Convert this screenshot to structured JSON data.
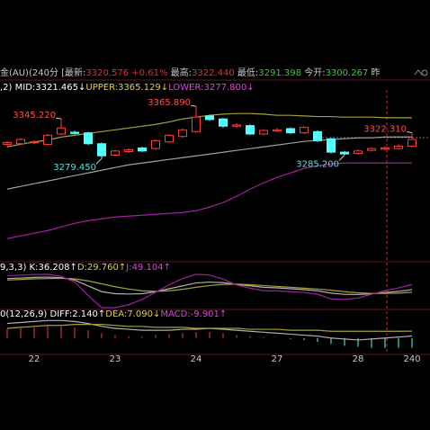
{
  "chart_data": {
    "type": "candlestick",
    "title_segments": [
      {
        "text": "金(AU)(240分",
        "color": "#c8c8c8"
      },
      {
        "text": " [最新:",
        "color": "#c8c8c8"
      },
      {
        "text": "3320.576 +0.61%",
        "color": "#e03030"
      },
      {
        "text": " 最高:",
        "color": "#c8c8c8"
      },
      {
        "text": "3322.440",
        "color": "#e03030"
      },
      {
        "text": " 最低:",
        "color": "#c8c8c8"
      },
      {
        "text": "3291.398",
        "color": "#30d030"
      },
      {
        "text": " 今开:",
        "color": "#c8c8c8"
      },
      {
        "text": "3300.267",
        "color": "#30d030"
      },
      {
        "text": " 昨",
        "color": "#c8c8c8"
      }
    ],
    "boll_segments": [
      {
        "text": ",2) MID:3321.465↓",
        "color": "#ffffff"
      },
      {
        "text": "UPPER:3365.129↓",
        "color": "#e0d040"
      },
      {
        "text": "LOWER:3277.800↓",
        "color": "#e040e0"
      }
    ],
    "categories": [
      null,
      null,
      "22",
      null,
      null,
      null,
      null,
      null,
      "23",
      null,
      null,
      null,
      null,
      null,
      "24",
      null,
      null,
      null,
      null,
      null,
      "27",
      null,
      null,
      null,
      null,
      null,
      "28",
      null,
      null,
      null,
      "240"
    ],
    "open": [
      3303,
      3304,
      3306,
      3303,
      3320,
      3323,
      3322,
      3304,
      3285,
      3291,
      3297,
      3296,
      3307,
      3316,
      3324,
      3350,
      3345,
      3333,
      3334,
      3320,
      3325,
      3329,
      3322,
      3324,
      3312,
      3290,
      3288,
      3293,
      3295,
      3296,
      3300
    ],
    "high": [
      3308,
      3313,
      3310,
      3320,
      3345.22,
      3326,
      3324,
      3306,
      3294,
      3296,
      3299,
      3311,
      3320,
      3329,
      3365.89,
      3352,
      3347,
      3338,
      3336,
      3328,
      3330,
      3331,
      3333,
      3326,
      3314,
      3292,
      3295,
      3298,
      3300,
      3303,
      3322.31
    ],
    "low": [
      3300,
      3302,
      3303,
      3301,
      3318,
      3319,
      3302,
      3279.45,
      3283,
      3289,
      3290,
      3294,
      3305,
      3314,
      3322,
      3342,
      3330,
      3330,
      3318,
      3318,
      3323,
      3320,
      3320,
      3307,
      3288,
      3285.2,
      3286,
      3291,
      3293,
      3294,
      3298
    ],
    "close": [
      3306,
      3311,
      3307,
      3318,
      3330,
      3321,
      3304,
      3284,
      3292,
      3294,
      3292,
      3309,
      3318,
      3327,
      3348,
      3344,
      3333,
      3335,
      3320,
      3326,
      3327,
      3322,
      3331,
      3309,
      3290,
      3287,
      3292,
      3296,
      3297,
      3300,
      3311
    ],
    "up_color": "#ff3c3c",
    "down_color": "#54ffff",
    "ylim": [
      3110,
      3393
    ],
    "series": [
      {
        "color": "#a8a030",
        "values": [
          3299,
          3303,
          3307,
          3310,
          3315,
          3318,
          3321,
          3324,
          3327,
          3330,
          3333,
          3336,
          3340,
          3345,
          3348,
          3351,
          3353,
          3354,
          3354,
          3353,
          3351,
          3351,
          3350,
          3349,
          3349,
          3348,
          3348,
          3348,
          3347,
          3347,
          3347
        ]
      },
      {
        "color": "#a0a0a0",
        "values": [
          3228.8,
          3233.3,
          3237.8,
          3242.2,
          3246.7,
          3251.2,
          3255.6,
          3260.1,
          3264.6,
          3269,
          3272,
          3275,
          3278,
          3280.9,
          3283.9,
          3286.9,
          3289.9,
          3292.9,
          3295.9,
          3298.8,
          3301.8,
          3304.8,
          3307.8,
          3309.3,
          3310.8,
          3312.3,
          3313.7,
          3313.7,
          3315.2,
          3315.2,
          3315.2
        ]
      },
      {
        "color": "#a020a0",
        "values": [
          3146.9,
          3151.3,
          3155.8,
          3160.3,
          3166.2,
          3172.2,
          3176.7,
          3179.6,
          3182.6,
          3184.1,
          3185.6,
          3187.1,
          3188.6,
          3190.1,
          3193.1,
          3199,
          3206.5,
          3216.9,
          3228.8,
          3239.2,
          3248.2,
          3255.6,
          3263.1,
          3267.6,
          3270.6,
          3272,
          3272,
          3272,
          3272,
          3272,
          3272
        ]
      }
    ],
    "annotations": [
      {
        "value": 3345.22,
        "label": "3345.220",
        "color": "#ff5050"
      },
      {
        "value": 3279.45,
        "label": "3279.450",
        "color": "#54e0e0"
      },
      {
        "value": 3365.89,
        "label": "3365.890",
        "color": "#ff5050"
      },
      {
        "value": 3285.2,
        "label": "3285.200",
        "color": "#54e0e0"
      },
      {
        "value": 3322.31,
        "label": "3322.310",
        "color": "#ff5050"
      }
    ],
    "kdj": {
      "legend_segments": [
        {
          "text": "9,3,3) K:36.208↑",
          "color": "#ffffff"
        },
        {
          "text": "D:29.760↑",
          "color": "#e0d040"
        },
        {
          "text": "J:49.104↑",
          "color": "#e040e0"
        }
      ],
      "ylim": [
        -20,
        110
      ],
      "series": [
        {
          "color": "#b0b0b0",
          "values": [
            80,
            82,
            84,
            85,
            83,
            75,
            55,
            35,
            28,
            27,
            28,
            35,
            45,
            55,
            65,
            68,
            66,
            60,
            55,
            50,
            48,
            45,
            42,
            38,
            30,
            26,
            25,
            28,
            32,
            36,
            42
          ]
        },
        {
          "color": "#a8a030",
          "values": [
            75,
            77,
            79,
            80,
            81,
            79,
            72,
            62,
            52,
            44,
            38,
            36,
            38,
            43,
            50,
            56,
            60,
            61,
            59,
            56,
            53,
            50,
            47,
            44,
            40,
            35,
            31,
            29,
            29,
            30,
            33
          ]
        },
        {
          "color": "#a020a0",
          "values": [
            90,
            92,
            94,
            95,
            88,
            68,
            22,
            -20,
            -20,
            -10,
            8,
            33,
            59,
            80,
            95,
            92,
            78,
            58,
            47,
            38,
            38,
            35,
            32,
            26,
            10,
            8,
            13,
            26,
            38,
            48,
            60
          ]
        }
      ]
    },
    "macd": {
      "legend_segments": [
        {
          "text": "0(12,26,9) DIFF:2.140↑",
          "color": "#ffffff"
        },
        {
          "text": "DEA:7.090↓",
          "color": "#e0d040"
        },
        {
          "text": "MACD:-9.901↑",
          "color": "#e040e0"
        }
      ],
      "ylim": [
        -15,
        22
      ],
      "series": [
        {
          "color": "#b0b0b0",
          "values": [
            15,
            16,
            17,
            18,
            18,
            17,
            15,
            12,
            10,
            9,
            8,
            8,
            8,
            9,
            9,
            10,
            9,
            8,
            7,
            6,
            5,
            4,
            3,
            2,
            0,
            -1,
            -2,
            -1,
            0,
            1,
            2.14
          ]
        },
        {
          "color": "#a8a030",
          "values": [
            10,
            11,
            12,
            13,
            13,
            14,
            14,
            14,
            13,
            12,
            12,
            11,
            11,
            11,
            10,
            10,
            10,
            10,
            9,
            9,
            9,
            8,
            8,
            8,
            7,
            7,
            7,
            7,
            7,
            7,
            7.09
          ]
        }
      ],
      "histogram": [
        9,
        10,
        11,
        12,
        12,
        11,
        8,
        5,
        3,
        2,
        2,
        3,
        4,
        5,
        6,
        6,
        5,
        3,
        2,
        1,
        0,
        -1,
        -2,
        -4,
        -6,
        -8,
        -9,
        -10,
        -10,
        -10,
        -9.901
      ]
    }
  }
}
